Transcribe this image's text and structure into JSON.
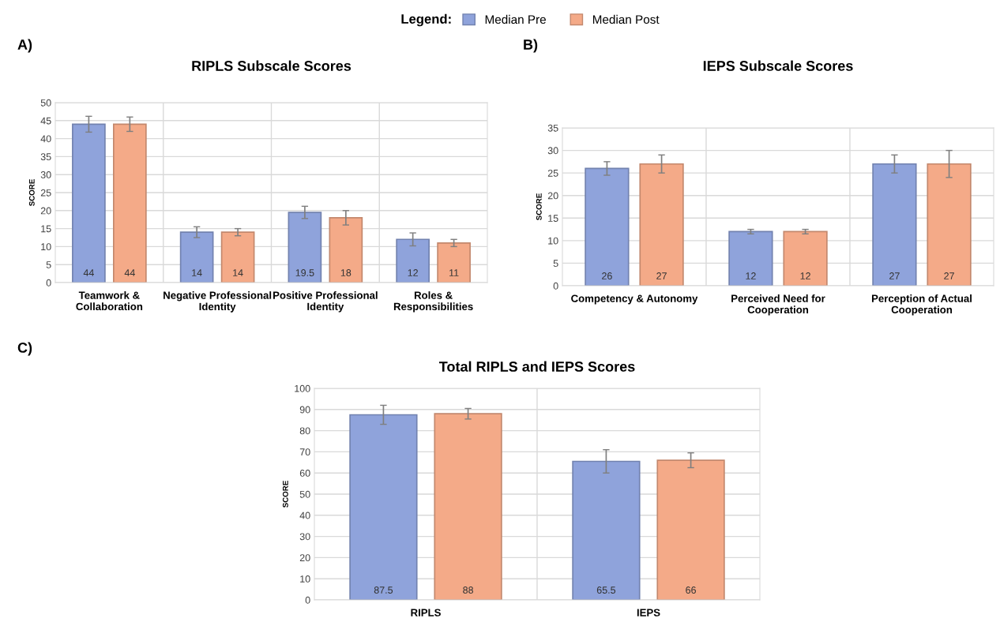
{
  "chart_data": [
    {
      "type": "bar",
      "title": "RIPLS Subscale Scores",
      "ylabel": "SCORE",
      "legend_title": "Legend:",
      "legend": "top",
      "annotations": [
        "A)"
      ],
      "categories": [
        "Teamwork &\nCollaboration",
        "Negative Professional\nIdentity",
        "Positive Professional\nIdentity",
        "Roles &\nResponsibilities"
      ],
      "series": [
        {
          "name": "Median Pre",
          "color": "#8fa3db",
          "values": [
            44,
            14,
            19.5,
            12
          ],
          "errors": [
            2.2,
            1.5,
            1.7,
            1.8
          ]
        },
        {
          "name": "Median Post",
          "color": "#f4aa88",
          "values": [
            44,
            14,
            18,
            11
          ],
          "errors": [
            2,
            1,
            2,
            1
          ]
        }
      ],
      "ylim": [
        0,
        50
      ],
      "yticks": [
        0,
        5,
        10,
        15,
        20,
        25,
        30,
        35,
        40,
        45,
        50
      ],
      "grid": true,
      "data_labels": true
    },
    {
      "type": "bar",
      "title": "IEPS Subscale Scores",
      "ylabel": "SCORE",
      "annotations": [
        "B)"
      ],
      "categories": [
        "Competency & Autonomy",
        "Perceived Need for\nCooperation",
        "Perception of Actual\nCooperation"
      ],
      "series": [
        {
          "name": "Median Pre",
          "color": "#8fa3db",
          "values": [
            26,
            12,
            27
          ],
          "errors": [
            1.5,
            0.5,
            2
          ]
        },
        {
          "name": "Median Post",
          "color": "#f4aa88",
          "values": [
            27,
            12,
            27
          ],
          "errors": [
            2,
            0.5,
            3
          ]
        }
      ],
      "ylim": [
        0,
        35
      ],
      "yticks": [
        0,
        5,
        10,
        15,
        20,
        25,
        30,
        35
      ],
      "grid": true,
      "data_labels": true
    },
    {
      "type": "bar",
      "title": "Total RIPLS and IEPS Scores",
      "ylabel": "SCORE",
      "annotations": [
        "C)"
      ],
      "categories": [
        "RIPLS",
        "IEPS"
      ],
      "series": [
        {
          "name": "Median Pre",
          "color": "#8fa3db",
          "values": [
            87.5,
            65.5
          ],
          "errors": [
            4.5,
            5.5
          ]
        },
        {
          "name": "Median Post",
          "color": "#f4aa88",
          "values": [
            88,
            66
          ],
          "errors": [
            2.5,
            3.5
          ]
        }
      ],
      "ylim": [
        0,
        100
      ],
      "yticks": [
        0,
        10,
        20,
        30,
        40,
        50,
        60,
        70,
        80,
        90,
        100
      ],
      "grid": true,
      "data_labels": true
    }
  ]
}
